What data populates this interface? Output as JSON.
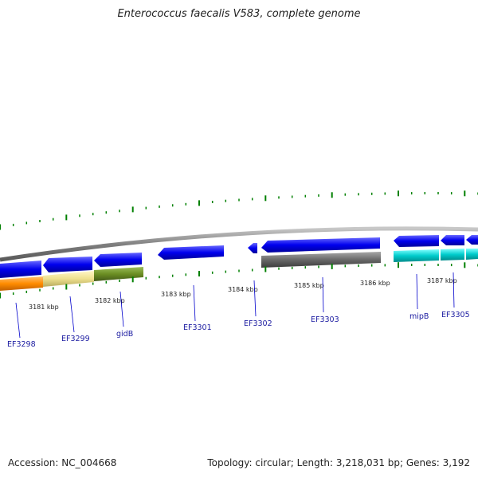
{
  "title": "Enterococcus faecalis V583, complete genome",
  "footer": {
    "accession": "Accession: NC_004668",
    "summary": "Topology: circular; Length: 3,218,031 bp; Genes: 3,192"
  },
  "kbp_labels": [
    "3181 kbp",
    "3182 kbp",
    "3183 kbp",
    "3184 kbp",
    "3185 kbp",
    "3186 kbp",
    "3187 kbp"
  ],
  "genes": [
    {
      "name": "EF3298",
      "strand": "-",
      "color": "#0000ee"
    },
    {
      "name": "EF3299",
      "strand": "-",
      "color": "#0000ee"
    },
    {
      "name": "gidB",
      "strand": "-",
      "color": "#0000ee"
    },
    {
      "name": "EF3301",
      "strand": "-",
      "color": "#0000ee"
    },
    {
      "name": "EF3302",
      "strand": "-",
      "color": "#0000ee"
    },
    {
      "name": "EF3303",
      "strand": "-",
      "color": "#0000ee"
    },
    {
      "name": "mipB",
      "strand": "-",
      "color": "#0000ee"
    },
    {
      "name": "EF3305",
      "strand": "-",
      "color": "#0000ee"
    }
  ],
  "cog_colors": {
    "orange": "#ff8c00",
    "khaki": "#eee08e",
    "olive": "#6b8e23",
    "gray": "#696969",
    "cyan": "#00cccc"
  },
  "tick_color": "#008000",
  "backbone_color": "#808080"
}
